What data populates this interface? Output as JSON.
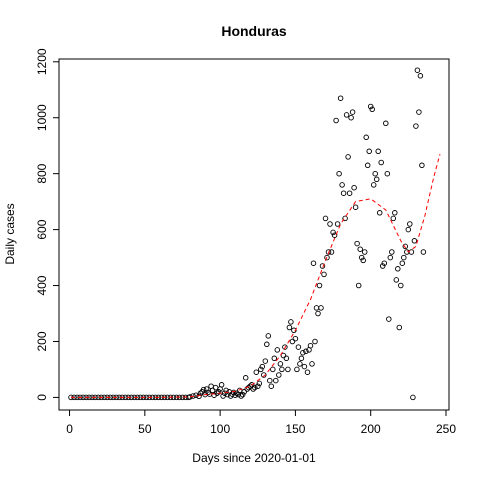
{
  "chart_data": {
    "type": "scatter",
    "title": "Honduras",
    "xlabel": "Days since 2020-01-01",
    "ylabel": "Daily cases",
    "xlim": [
      -7,
      252
    ],
    "ylim": [
      -45,
      1210
    ],
    "x_ticks": [
      0,
      50,
      100,
      150,
      200,
      250
    ],
    "y_ticks": [
      0,
      200,
      400,
      600,
      800,
      1000,
      1200
    ],
    "grid": false,
    "legend": "none",
    "point_color": "#000000",
    "fit_color": "#ff0000",
    "series": [
      {
        "type": "scatter",
        "points": [
          [
            1,
            0
          ],
          [
            3,
            0
          ],
          [
            5,
            0
          ],
          [
            7,
            0
          ],
          [
            9,
            0
          ],
          [
            11,
            0
          ],
          [
            13,
            0
          ],
          [
            15,
            0
          ],
          [
            17,
            0
          ],
          [
            19,
            0
          ],
          [
            21,
            0
          ],
          [
            23,
            0
          ],
          [
            25,
            0
          ],
          [
            27,
            0
          ],
          [
            29,
            0
          ],
          [
            31,
            0
          ],
          [
            33,
            0
          ],
          [
            35,
            0
          ],
          [
            37,
            0
          ],
          [
            39,
            0
          ],
          [
            41,
            0
          ],
          [
            43,
            0
          ],
          [
            45,
            0
          ],
          [
            47,
            0
          ],
          [
            49,
            0
          ],
          [
            51,
            0
          ],
          [
            53,
            0
          ],
          [
            55,
            0
          ],
          [
            57,
            0
          ],
          [
            59,
            0
          ],
          [
            61,
            0
          ],
          [
            63,
            0
          ],
          [
            65,
            0
          ],
          [
            67,
            0
          ],
          [
            69,
            0
          ],
          [
            71,
            0
          ],
          [
            73,
            0
          ],
          [
            75,
            0
          ],
          [
            77,
            0
          ],
          [
            79,
            0
          ],
          [
            80,
            2
          ],
          [
            82,
            5
          ],
          [
            84,
            8
          ],
          [
            86,
            4
          ],
          [
            87,
            15
          ],
          [
            88,
            20
          ],
          [
            89,
            28
          ],
          [
            90,
            10
          ],
          [
            91,
            30
          ],
          [
            92,
            18
          ],
          [
            93,
            12
          ],
          [
            94,
            40
          ],
          [
            95,
            25
          ],
          [
            96,
            8
          ],
          [
            97,
            35
          ],
          [
            98,
            15
          ],
          [
            99,
            20
          ],
          [
            100,
            30
          ],
          [
            101,
            45
          ],
          [
            102,
            5
          ],
          [
            103,
            15
          ],
          [
            104,
            25
          ],
          [
            105,
            10
          ],
          [
            106,
            20
          ],
          [
            107,
            5
          ],
          [
            108,
            12
          ],
          [
            109,
            18
          ],
          [
            110,
            8
          ],
          [
            111,
            15
          ],
          [
            112,
            10
          ],
          [
            113,
            25
          ],
          [
            114,
            5
          ],
          [
            115,
            10
          ],
          [
            116,
            20
          ],
          [
            117,
            70
          ],
          [
            118,
            30
          ],
          [
            119,
            35
          ],
          [
            120,
            40
          ],
          [
            121,
            45
          ],
          [
            122,
            30
          ],
          [
            123,
            35
          ],
          [
            124,
            90
          ],
          [
            125,
            40
          ],
          [
            126,
            50
          ],
          [
            127,
            100
          ],
          [
            128,
            110
          ],
          [
            129,
            80
          ],
          [
            130,
            130
          ],
          [
            131,
            190
          ],
          [
            132,
            220
          ],
          [
            133,
            60
          ],
          [
            134,
            40
          ],
          [
            135,
            100
          ],
          [
            136,
            140
          ],
          [
            137,
            60
          ],
          [
            138,
            170
          ],
          [
            139,
            80
          ],
          [
            140,
            120
          ],
          [
            141,
            100
          ],
          [
            142,
            150
          ],
          [
            143,
            180
          ],
          [
            144,
            140
          ],
          [
            145,
            100
          ],
          [
            146,
            250
          ],
          [
            147,
            270
          ],
          [
            148,
            200
          ],
          [
            149,
            240
          ],
          [
            150,
            210
          ],
          [
            151,
            100
          ],
          [
            152,
            180
          ],
          [
            153,
            120
          ],
          [
            154,
            140
          ],
          [
            155,
            160
          ],
          [
            156,
            110
          ],
          [
            157,
            165
          ],
          [
            158,
            90
          ],
          [
            159,
            170
          ],
          [
            160,
            185
          ],
          [
            161,
            120
          ],
          [
            162,
            480
          ],
          [
            163,
            200
          ],
          [
            164,
            320
          ],
          [
            165,
            300
          ],
          [
            166,
            400
          ],
          [
            167,
            320
          ],
          [
            168,
            470
          ],
          [
            169,
            440
          ],
          [
            170,
            640
          ],
          [
            171,
            500
          ],
          [
            172,
            520
          ],
          [
            173,
            620
          ],
          [
            174,
            520
          ],
          [
            175,
            590
          ],
          [
            176,
            580
          ],
          [
            177,
            990
          ],
          [
            178,
            620
          ],
          [
            179,
            800
          ],
          [
            180,
            1070
          ],
          [
            181,
            760
          ],
          [
            182,
            730
          ],
          [
            183,
            640
          ],
          [
            184,
            1010
          ],
          [
            185,
            860
          ],
          [
            186,
            730
          ],
          [
            187,
            1000
          ],
          [
            188,
            1020
          ],
          [
            189,
            750
          ],
          [
            190,
            680
          ],
          [
            191,
            550
          ],
          [
            192,
            400
          ],
          [
            193,
            530
          ],
          [
            194,
            500
          ],
          [
            195,
            490
          ],
          [
            196,
            520
          ],
          [
            197,
            930
          ],
          [
            198,
            830
          ],
          [
            199,
            880
          ],
          [
            200,
            1040
          ],
          [
            201,
            1030
          ],
          [
            202,
            760
          ],
          [
            203,
            800
          ],
          [
            204,
            780
          ],
          [
            205,
            880
          ],
          [
            206,
            660
          ],
          [
            207,
            840
          ],
          [
            208,
            470
          ],
          [
            209,
            480
          ],
          [
            210,
            980
          ],
          [
            211,
            800
          ],
          [
            212,
            280
          ],
          [
            213,
            500
          ],
          [
            214,
            520
          ],
          [
            215,
            640
          ],
          [
            216,
            660
          ],
          [
            217,
            420
          ],
          [
            218,
            460
          ],
          [
            219,
            250
          ],
          [
            220,
            400
          ],
          [
            221,
            480
          ],
          [
            222,
            500
          ],
          [
            223,
            540
          ],
          [
            224,
            520
          ],
          [
            225,
            600
          ],
          [
            226,
            620
          ],
          [
            227,
            520
          ],
          [
            228,
            0
          ],
          [
            229,
            560
          ],
          [
            230,
            970
          ],
          [
            231,
            1170
          ],
          [
            232,
            1020
          ],
          [
            233,
            1150
          ],
          [
            234,
            830
          ],
          [
            235,
            520
          ]
        ]
      },
      {
        "type": "line",
        "style": "dashed",
        "points": [
          [
            1,
            0
          ],
          [
            60,
            0
          ],
          [
            80,
            2
          ],
          [
            90,
            10
          ],
          [
            100,
            15
          ],
          [
            110,
            22
          ],
          [
            120,
            40
          ],
          [
            130,
            80
          ],
          [
            140,
            150
          ],
          [
            150,
            240
          ],
          [
            160,
            350
          ],
          [
            170,
            490
          ],
          [
            180,
            620
          ],
          [
            190,
            700
          ],
          [
            200,
            710
          ],
          [
            210,
            670
          ],
          [
            220,
            560
          ],
          [
            225,
            520
          ],
          [
            230,
            540
          ],
          [
            236,
            650
          ],
          [
            242,
            790
          ],
          [
            246,
            870
          ]
        ]
      }
    ]
  }
}
